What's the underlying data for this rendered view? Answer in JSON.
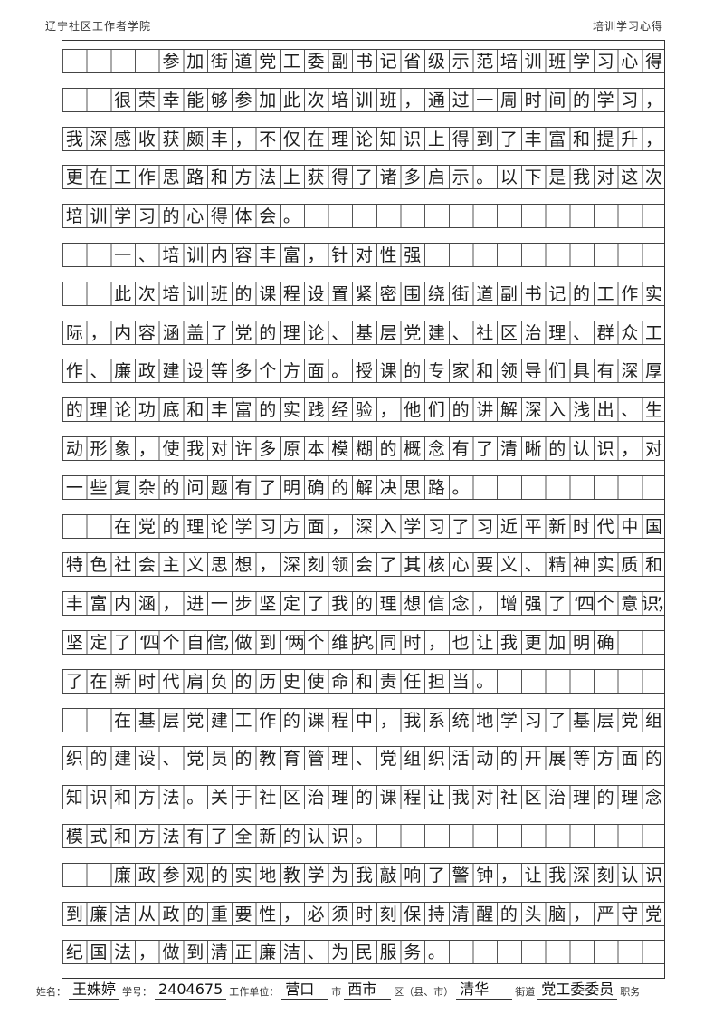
{
  "header": {
    "left": "辽宁社区工作者学院",
    "right": "培训学习心得"
  },
  "lines": [
    "    参加街道党工委副书记省级示范培训班学习心得",
    "  很荣幸能够参加此次培训班，通过一周时间的学习，",
    "我深感收获颇丰，不仅在理论知识上得到了丰富和提升，",
    "更在工作思路和方法上获得了诸多启示。以下是我对这次",
    "培训学习的心得体会。",
    "  一、培训内容丰富，针对性强",
    "  此次培训班的课程设置紧密围绕街道副书记的工作实",
    "际，内容涵盖了党的理论、基层党建、社区治理、群众工",
    "作、廉政建设等多个方面。授课的专家和领导们具有深厚",
    "的理论功底和丰富的实践经验，他们的讲解深入浅出、生",
    "动形象，使我对许多原本模糊的概念有了清晰的认识，对",
    "一些复杂的问题有了明确的解决思路。",
    "  在党的理论学习方面，深入学习了习近平新时代中国",
    "特色社会主义思想，深刻领会了其核心要义、精神实质和",
    "丰富内涵，进一步坚定了我的理想信念，增强了“四个意识”，",
    "坚定了“四个自信”，做到“两个维护”。同时，也让我更加明确",
    "了在新时代肩负的历史使命和责任担当。",
    "  在基层党建工作的课程中，我系统地学习了基层党组",
    "织的建设、党员的教育管理、党组织活动的开展等方面的",
    "知识和方法。关于社区治理的课程让我对社区治理的理念",
    "模式和方法有了全新的认识。",
    "  廉政参观的实地教学为我敲响了警钟，让我深刻认识",
    "到廉洁从政的重要性，必须时刻保持清醒的头脑，严守党",
    "纪国法，做到清正廉洁、为民服务。"
  ],
  "footer": {
    "name_label": "姓名：",
    "name": "王姝婷",
    "id_label": "学号：",
    "id": "2404675",
    "unit_label": "工作单位：",
    "city": "营口",
    "city_label": "市",
    "district": "西市",
    "district_label": "区（县、市）",
    "street": "清华",
    "street_label": "街道",
    "position": "党工委委员",
    "position_label": "职务"
  }
}
